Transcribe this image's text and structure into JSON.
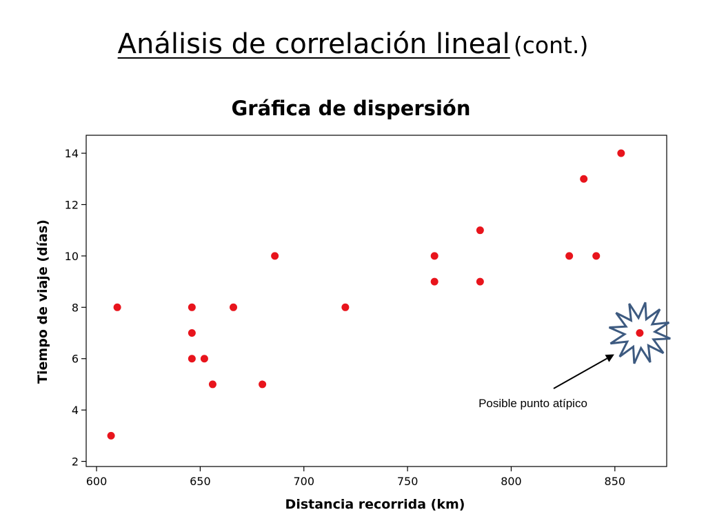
{
  "slide": {
    "title": "Análisis de correlación lineal",
    "title_suffix": "(cont.)"
  },
  "chart_data": {
    "type": "scatter",
    "title": "Gráfica de dispersión",
    "xlabel": "Distancia recorrida (km)",
    "ylabel": "Tiempo de viaje (días)",
    "xlim": [
      595,
      875
    ],
    "ylim": [
      1.8,
      14.7
    ],
    "xticks": [
      600,
      650,
      700,
      750,
      800,
      850
    ],
    "yticks": [
      2,
      4,
      6,
      8,
      10,
      12,
      14
    ],
    "grid": false,
    "point_color": "#e8141c",
    "x": [
      607,
      610,
      646,
      646,
      646,
      652,
      656,
      666,
      680,
      686,
      720,
      763,
      763,
      785,
      785,
      828,
      835,
      841,
      853,
      862
    ],
    "y": [
      3,
      8,
      8,
      7,
      6,
      6,
      5,
      8,
      5,
      10,
      8,
      10,
      9,
      11,
      9,
      10,
      13,
      10,
      14,
      7
    ],
    "annotation": {
      "text": "Posible punto atípico",
      "point": [
        862,
        7
      ],
      "burst_color": "#3d5a80"
    }
  }
}
